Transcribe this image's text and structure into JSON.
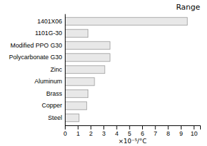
{
  "chart_data": {
    "type": "bar",
    "orientation": "horizontal",
    "title": "Range",
    "categories": [
      "Steel",
      "Copper",
      "Brass",
      "Aluminum",
      "Zinc",
      "Polycarbonate G30",
      "Modified PPO G30",
      "1101G-30",
      "1401X06"
    ],
    "values": [
      1.1,
      1.7,
      1.8,
      2.3,
      3.1,
      3.5,
      3.5,
      1.8,
      9.5
    ],
    "xlabel": "×10⁻⁵/°C",
    "xlim": [
      0,
      10.5
    ],
    "xticks": [
      0,
      1,
      2,
      3,
      4,
      5,
      6,
      7,
      8,
      9,
      10
    ],
    "color": "#e8e8e8"
  }
}
